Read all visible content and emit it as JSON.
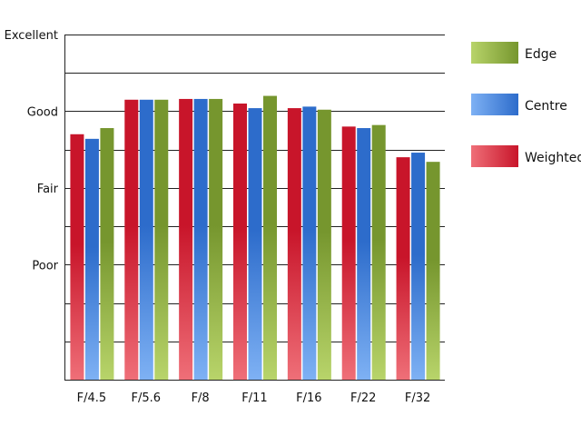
{
  "chart_data": {
    "type": "bar",
    "title": "",
    "xlabel": "",
    "ylabel": "",
    "categories": [
      "F/4.5",
      "F/5.6",
      "F/8",
      "F/11",
      "F/16",
      "F/22",
      "F/32"
    ],
    "y_ticks": [
      {
        "value": 1,
        "label": "Poor"
      },
      {
        "value": 2,
        "label": "Fair"
      },
      {
        "value": 3,
        "label": "Good"
      },
      {
        "value": 4,
        "label": "Excellent"
      }
    ],
    "ylim": [
      -0.5,
      4
    ],
    "gridline_step": 0.5,
    "grid": true,
    "legend_position": "right",
    "series": [
      {
        "name": "Weighted",
        "color": "#c8152a",
        "color_light": "#ef6f78",
        "values": [
          2.7,
          3.15,
          3.16,
          3.1,
          3.04,
          2.8,
          2.4
        ]
      },
      {
        "name": "Centre",
        "color": "#2d6ccb",
        "color_light": "#7eb1f4",
        "values": [
          2.64,
          3.15,
          3.16,
          3.04,
          3.06,
          2.78,
          2.46
        ]
      },
      {
        "name": "Edge",
        "color": "#76962e",
        "color_light": "#b8d46a",
        "values": [
          2.78,
          3.15,
          3.16,
          3.2,
          3.02,
          2.82,
          2.34
        ]
      }
    ],
    "legend_order": [
      "Edge",
      "Centre",
      "Weighted"
    ]
  }
}
